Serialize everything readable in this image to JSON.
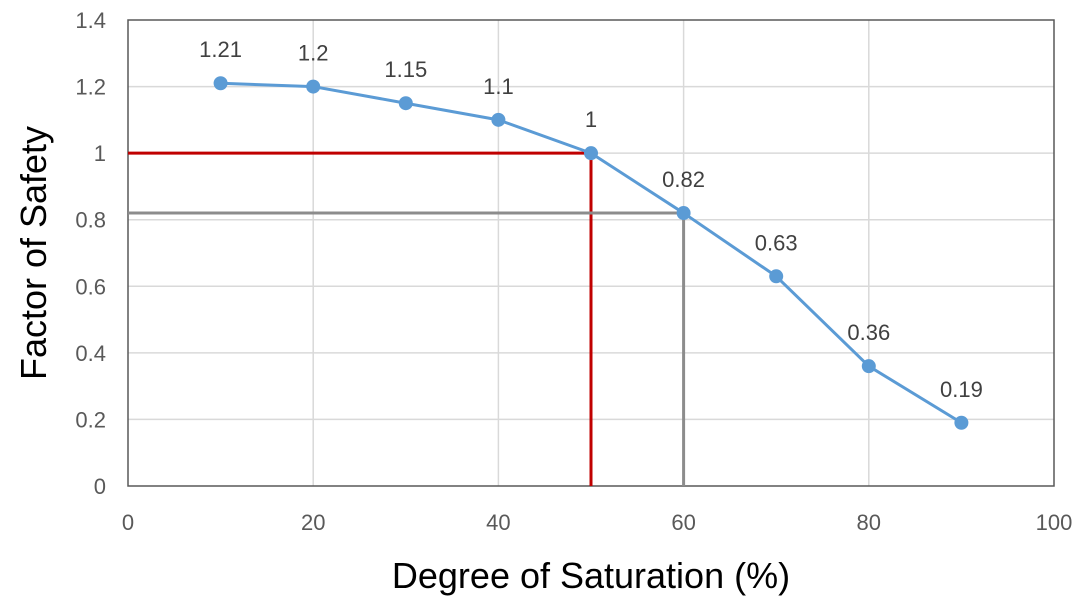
{
  "chart_data": {
    "type": "line",
    "title": "",
    "xlabel": "Degree of Saturation (%)",
    "ylabel": "Factor of Safety",
    "xlim": [
      0,
      100
    ],
    "ylim": [
      0,
      1.4
    ],
    "x_ticks": [
      "0",
      "20",
      "40",
      "60",
      "80",
      "100"
    ],
    "y_ticks": [
      "0",
      "0.2",
      "0.4",
      "0.6",
      "0.8",
      "1",
      "1.2",
      "1.4"
    ],
    "grid": true,
    "legend": "none",
    "series": [
      {
        "x": [
          10,
          20,
          30,
          40,
          50,
          60,
          70,
          80,
          90
        ],
        "y": [
          1.21,
          1.2,
          1.15,
          1.1,
          1,
          0.82,
          0.63,
          0.36,
          0.19
        ],
        "data_labels": [
          "1.21",
          "1.2",
          "1.15",
          "1.1",
          "1",
          "0.82",
          "0.63",
          "0.36",
          "0.19"
        ],
        "color": "#5b9bd5"
      }
    ],
    "reference_lines": [
      {
        "x": 50,
        "y": 1,
        "color": "#c00000"
      },
      {
        "x": 60,
        "y": 0.82,
        "color": "#8c8c8c"
      }
    ]
  }
}
